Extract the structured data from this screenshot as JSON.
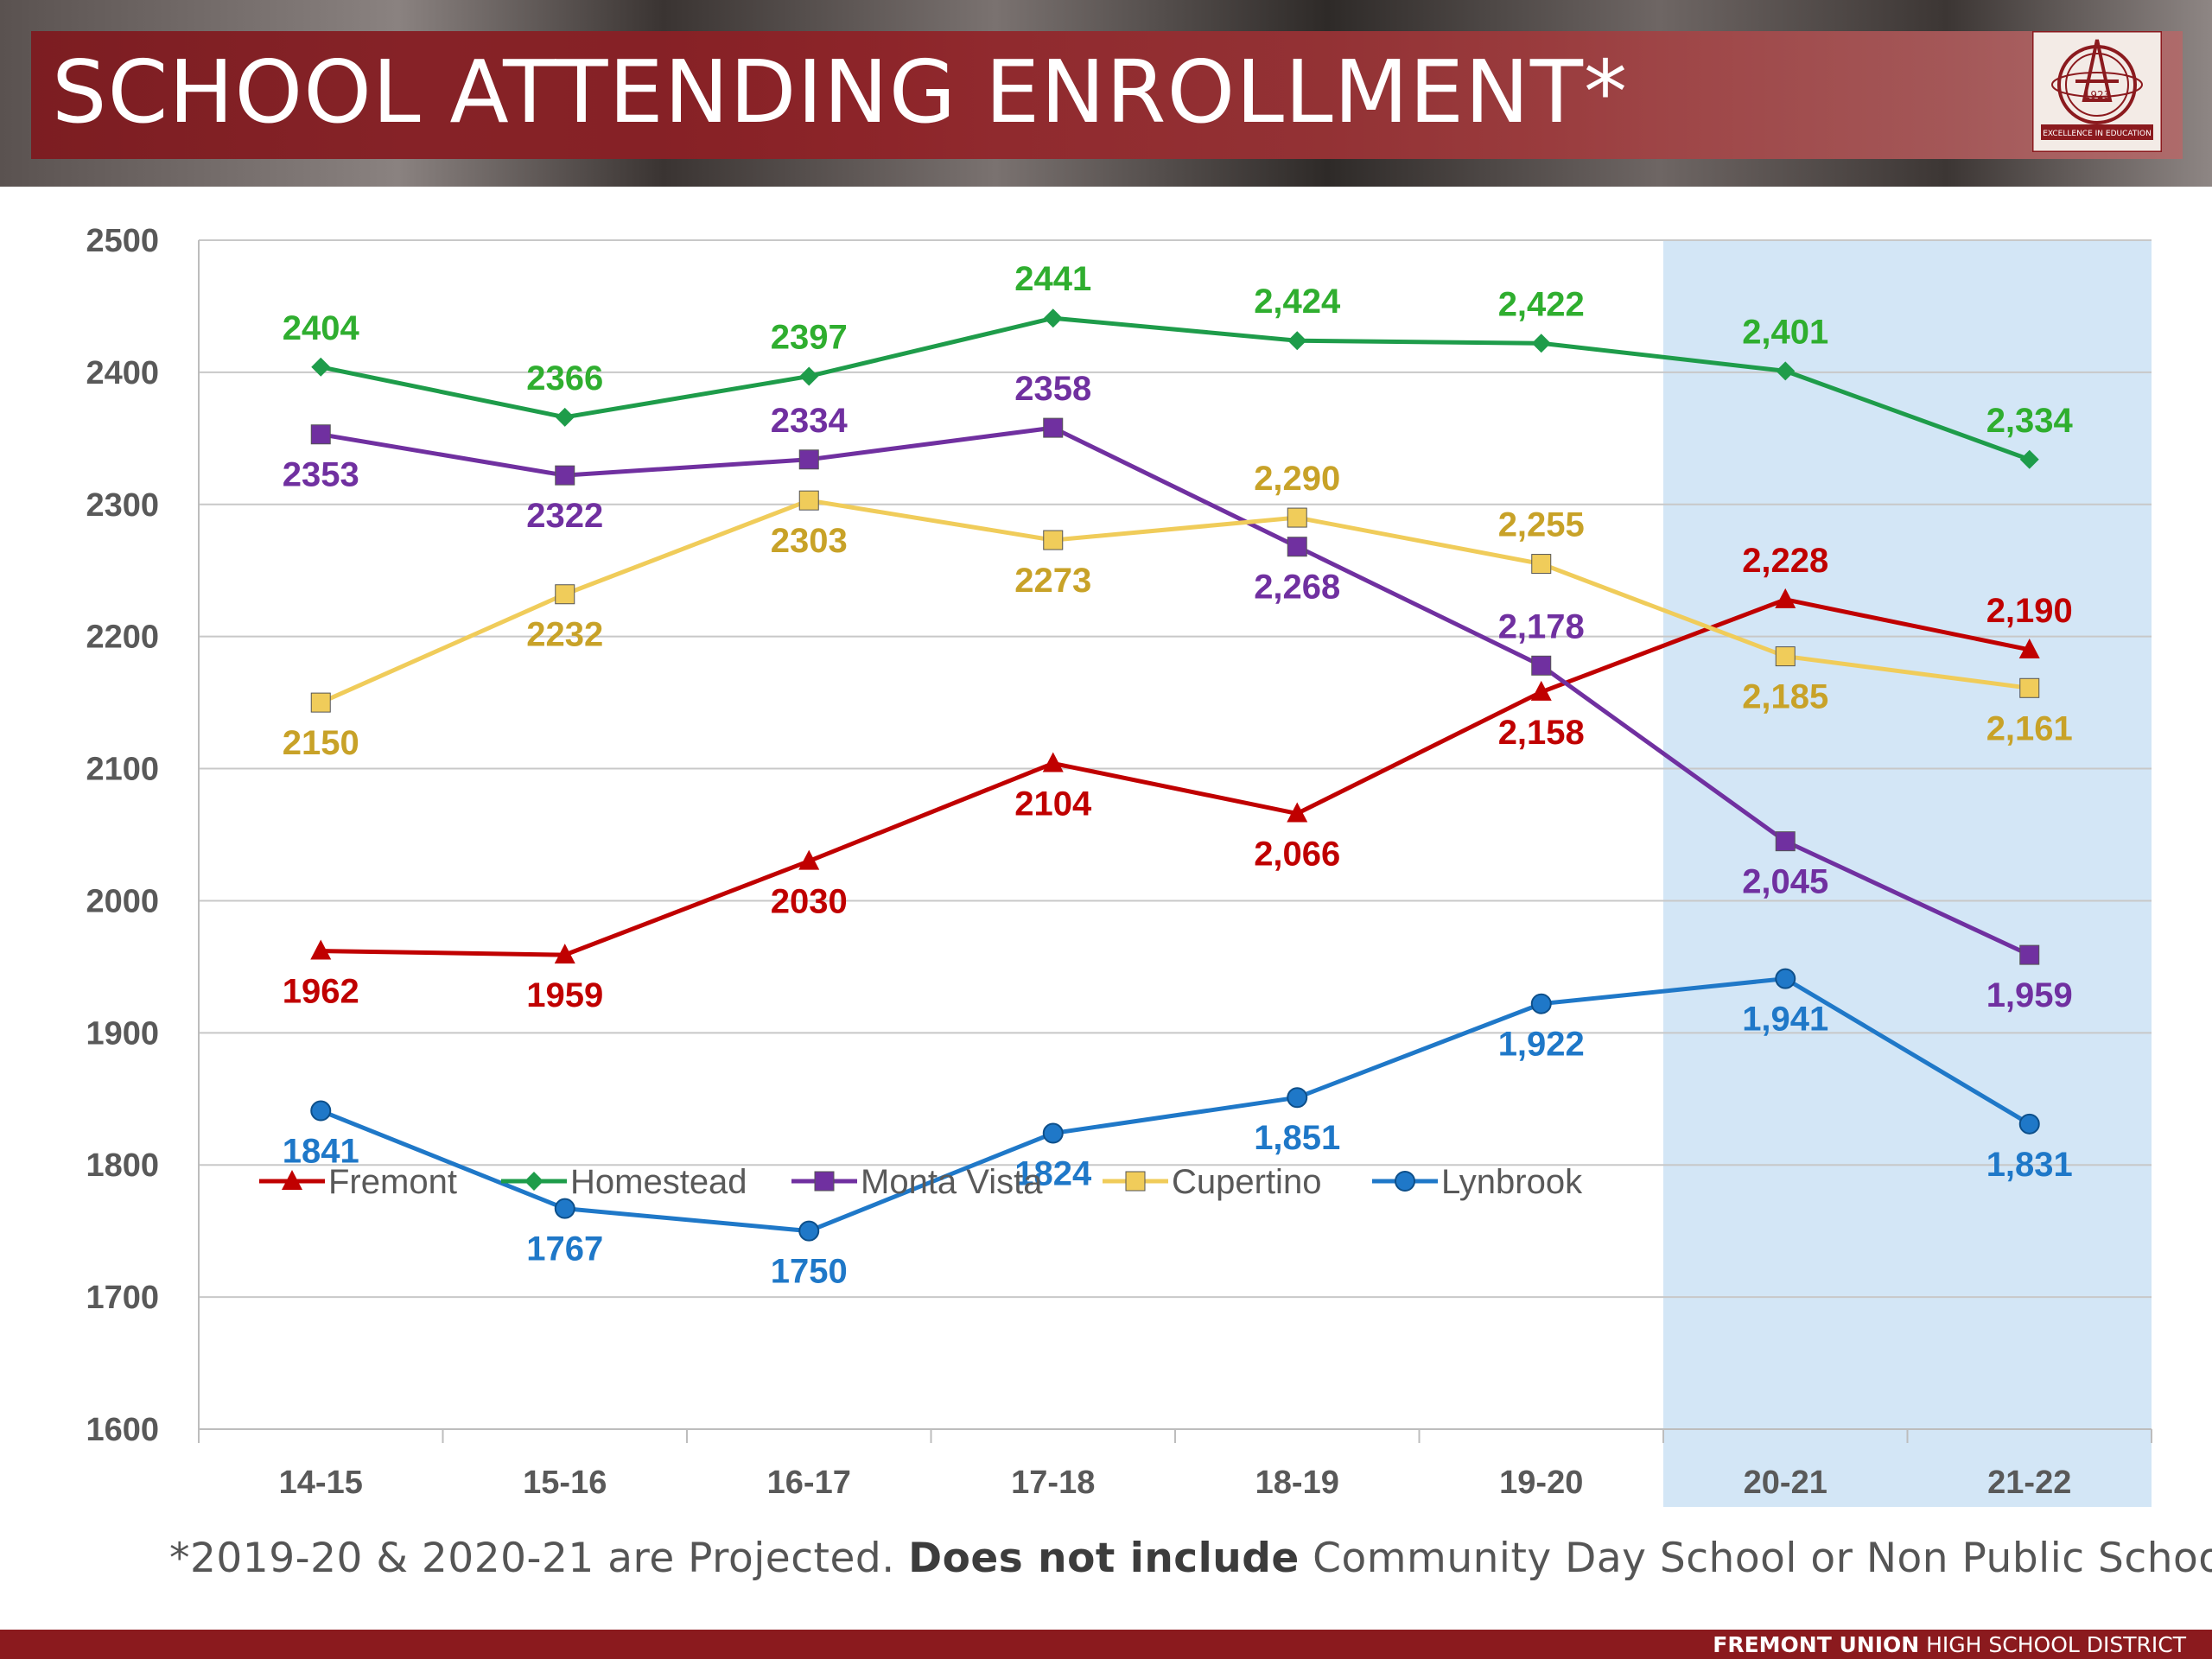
{
  "header": {
    "title": "SCHOOL ATTENDING ENROLLMENT*",
    "logo_year": "1923",
    "logo_motto": "EXCELLENCE IN EDUCATION"
  },
  "footnote": {
    "prefix": "*2019-20 & 2020-21 are Projected. ",
    "bold": "Does not include",
    "suffix": " Community Day School or Non Public School"
  },
  "footer": {
    "brand_bold": "FREMONT UNION",
    "brand_rest": " HIGH SCHOOL DISTRICT"
  },
  "colors": {
    "banner_red": "#8b1a1e",
    "projected_shade": "#d3e6f6",
    "grid": "#c8c8c8",
    "axis_text": "#595959"
  },
  "chart_data": {
    "type": "line",
    "title": "SCHOOL ATTENDING ENROLLMENT*",
    "xlabel": "",
    "ylabel": "",
    "ylim": [
      1600,
      2500
    ],
    "yticks": [
      2500,
      2400,
      2300,
      2200,
      2100,
      2000,
      1900,
      1800,
      1700,
      1600
    ],
    "grid": true,
    "legend_position": "bottom-left inside",
    "highlight_categories": [
      "20-21",
      "21-22"
    ],
    "categories": [
      "14-15",
      "15-16",
      "16-17",
      "17-18",
      "18-19",
      "19-20",
      "20-21",
      "21-22"
    ],
    "series": [
      {
        "name": "Fremont",
        "color": "#c00000",
        "label_color": "#c00000",
        "marker": "triangle",
        "values": [
          1962,
          1959,
          2030,
          2104,
          2066,
          2158,
          2228,
          2190
        ],
        "labels": [
          "1962",
          "1959",
          "2030",
          "2104",
          "2,066",
          "2,158",
          "2,228",
          "2,190"
        ],
        "label_pos": [
          "below",
          "below",
          "below",
          "below",
          "below",
          "below",
          "above",
          "above"
        ]
      },
      {
        "name": "Homestead",
        "color": "#1e9c4a",
        "label_color": "#2fae2f",
        "marker": "diamond",
        "values": [
          2404,
          2366,
          2397,
          2441,
          2424,
          2422,
          2401,
          2334
        ],
        "labels": [
          "2404",
          "2366",
          "2397",
          "2441",
          "2,424",
          "2,422",
          "2,401",
          "2,334"
        ],
        "label_pos": [
          "above",
          "above",
          "above",
          "above",
          "above",
          "above",
          "above",
          "above"
        ]
      },
      {
        "name": "Monta Vista",
        "color": "#7030a0",
        "label_color": "#7030a0",
        "marker": "square",
        "values": [
          2353,
          2322,
          2334,
          2358,
          2268,
          2178,
          2045,
          1959
        ],
        "labels": [
          "2353",
          "2322",
          "2334",
          "2358",
          "2,268",
          "2,178",
          "2,045",
          "1,959"
        ],
        "label_pos": [
          "below",
          "below",
          "above",
          "above",
          "below",
          "above",
          "below",
          "below"
        ]
      },
      {
        "name": "Cupertino",
        "color": "#f0cc5a",
        "label_color": "#c8a228",
        "marker": "square",
        "values": [
          2150,
          2232,
          2303,
          2273,
          2290,
          2255,
          2185,
          2161
        ],
        "labels": [
          "2150",
          "2232",
          "2303",
          "2273",
          "2,290",
          "2,255",
          "2,185",
          "2,161"
        ],
        "label_pos": [
          "below",
          "below",
          "below",
          "below",
          "above",
          "above",
          "below",
          "below"
        ]
      },
      {
        "name": "Lynbrook",
        "color": "#1f78c8",
        "label_color": "#1f78c8",
        "marker": "circle",
        "values": [
          1841,
          1767,
          1750,
          1824,
          1851,
          1922,
          1941,
          1831
        ],
        "labels": [
          "1841",
          "1767",
          "1750",
          "1824",
          "1,851",
          "1,922",
          "1,941",
          "1,831"
        ],
        "label_pos": [
          "below",
          "below",
          "below",
          "below",
          "below",
          "below",
          "below",
          "below"
        ]
      }
    ]
  }
}
